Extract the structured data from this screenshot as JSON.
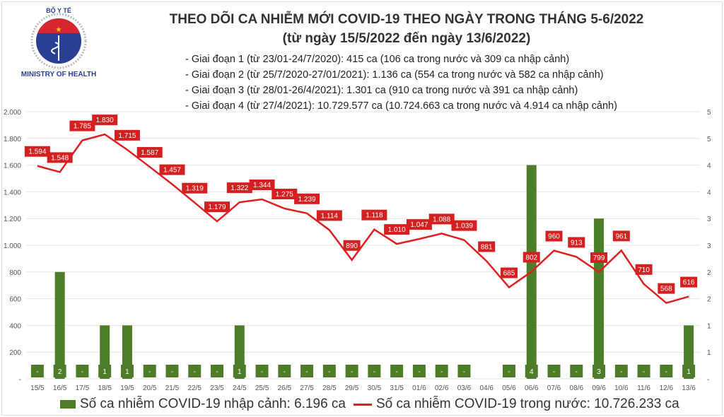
{
  "logo": {
    "top_text": "BỘ Y TẾ",
    "bottom_text": "MINISTRY OF HEALTH"
  },
  "title": [
    "THEO DÕI CA NHIỄM MỚI COVID-19 THEO NGÀY TRONG THÁNG 5-6/2022",
    "(từ ngày 15/5/2022 đến ngày 13/6/2022)"
  ],
  "bullets": [
    "- Giai đoạn 1 (từ 23/01-24/7/2020): 415 ca (106 ca trong nước và 309 ca nhập cảnh)",
    "- Giai đoạn 2 (từ 25/7/2020-27/01/2021): 1.136 ca (554 ca trong nước và 582 ca nhập cảnh)",
    "- Giai đoạn 3 (từ 28/01-26/4/2021): 1.301 ca (910 ca trong nước và 391 ca nhập cảnh)",
    "- Giai đoạn 4 (từ 27/4/2021): 10.729.577 ca (10.724.663 ca trong nước và 4.914 ca nhập cảnh)"
  ],
  "chart_data": {
    "type": "bar+line",
    "categories": [
      "15/5",
      "16/5",
      "17/5",
      "18/5",
      "19/5",
      "20/5",
      "21/5",
      "22/5",
      "23/5",
      "24/5",
      "25/5",
      "26/5",
      "27/5",
      "28/5",
      "29/5",
      "30/5",
      "31/5",
      "01/6",
      "02/6",
      "03/6",
      "04/6",
      "05/6",
      "06/6",
      "07/6",
      "08/6",
      "09/6",
      "10/6",
      "11/6",
      "12/6",
      "13/6"
    ],
    "series": [
      {
        "name": "Số ca nhiễm COVID-19 nhập cảnh: 6.196 ca",
        "type": "bar",
        "axis": "right",
        "color": "#4e7d2a",
        "values": [
          0,
          2,
          0,
          1,
          1,
          0,
          0,
          0,
          0,
          1,
          0,
          0,
          0,
          0,
          0,
          0,
          0,
          0,
          0,
          0,
          null,
          0,
          4,
          0,
          0,
          3,
          0,
          0,
          0,
          1
        ]
      },
      {
        "name": "Số ca nhiễm COVID-19 trong nước: 10.726.233 ca",
        "type": "line",
        "axis": "left",
        "color": "#e02020",
        "values": [
          1594,
          1548,
          1785,
          1830,
          1715,
          1587,
          1457,
          1319,
          1179,
          1322,
          1344,
          1275,
          1239,
          1114,
          890,
          1118,
          1010,
          1047,
          1088,
          1039,
          881,
          685,
          802,
          960,
          913,
          799,
          961,
          710,
          568,
          616
        ],
        "labels": [
          "1.594",
          "1.548",
          "1.785",
          "1.830",
          "1.715",
          "1.587",
          "1.457",
          "1.319",
          "1.179",
          "1.322",
          "1.344",
          "1.275",
          "1.239",
          "1.114",
          "890",
          "1.118",
          "1.010",
          "1.047",
          "1.088",
          "1.039",
          "881",
          "685",
          "802",
          "960",
          "913",
          "799",
          "961",
          "710",
          "568",
          "616"
        ]
      }
    ],
    "left_ticks": [
      "-",
      "200",
      "400",
      "600",
      "800",
      "1.000",
      "1.200",
      "1.400",
      "1.600",
      "1.800",
      "2.000"
    ],
    "right_ticks": [
      "-",
      "1",
      "1",
      "2",
      "2",
      "3",
      "3",
      "4",
      "4",
      "5",
      "5"
    ],
    "ylim_left": [
      0,
      2000
    ],
    "ylim_right": [
      0,
      5
    ],
    "legend": "bottom"
  }
}
